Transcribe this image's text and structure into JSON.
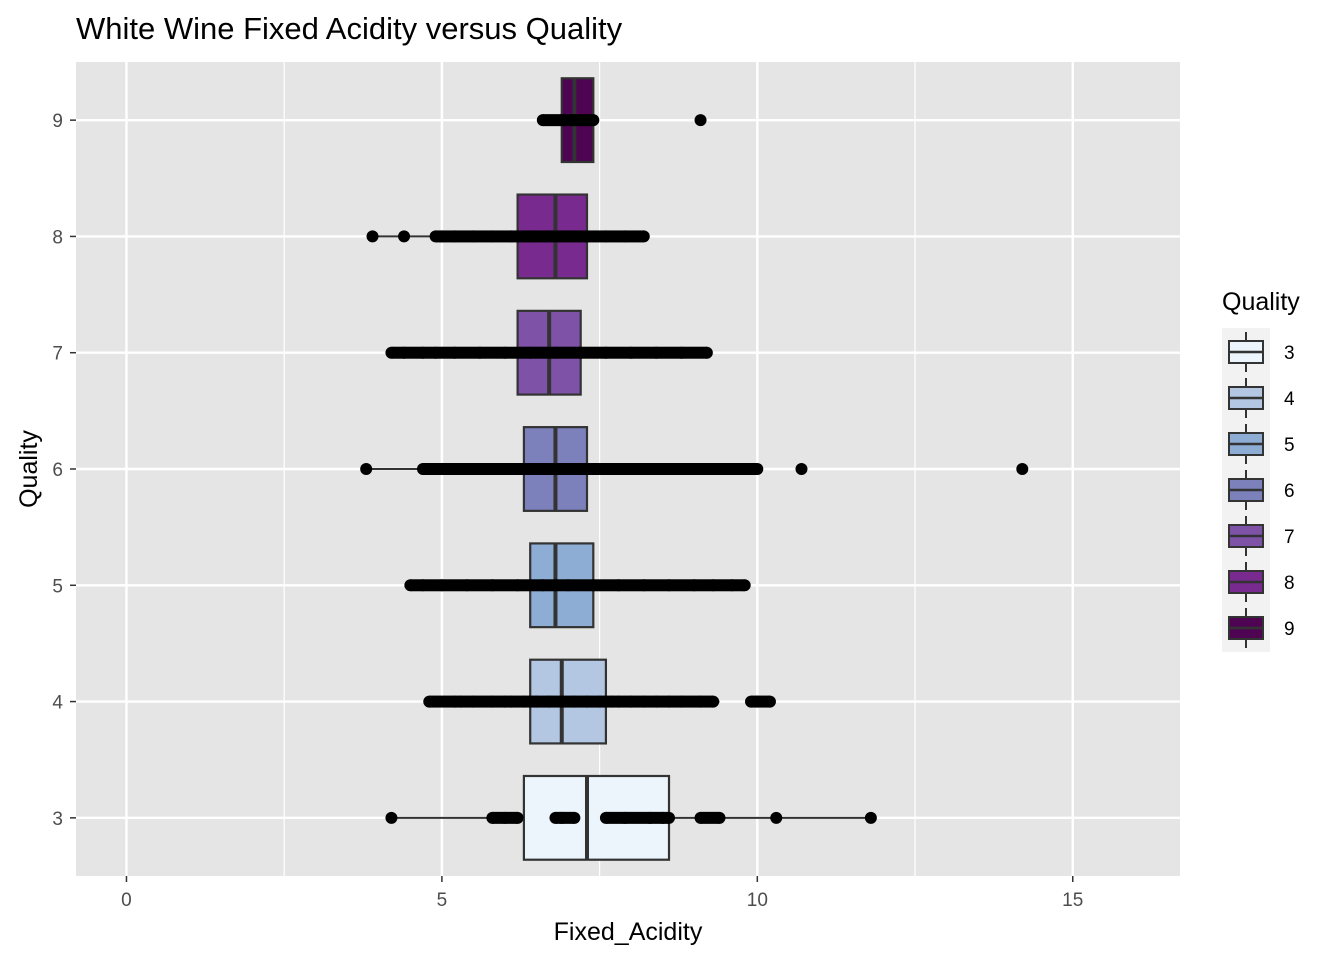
{
  "chart_data": {
    "type": "boxplot",
    "orientation": "horizontal",
    "title": "White Wine Fixed Acidity versus Quality",
    "xlabel": "Fixed_Acidity",
    "ylabel": "Quality",
    "xlim": [
      -0.8,
      16.7
    ],
    "x_ticks": [
      0,
      5,
      10,
      15
    ],
    "x_tick_labels": [
      "0",
      "5",
      "10",
      "15"
    ],
    "categories": [
      "3",
      "4",
      "5",
      "6",
      "7",
      "8",
      "9"
    ],
    "legend": {
      "title": "Quality",
      "position": "right",
      "entries": [
        "3",
        "4",
        "5",
        "6",
        "7",
        "8",
        "9"
      ]
    },
    "grid": true,
    "colors": {
      "panel": "#E5E5E5",
      "grid": "#FFFFFF",
      "box_outline": "#333333",
      "points": "#000000",
      "fills": [
        "#EBF5FB",
        "#B3C6E2",
        "#8EADD4",
        "#7C81BC",
        "#7D52A7",
        "#782A8F",
        "#4E0452"
      ]
    },
    "series": [
      {
        "category": "3",
        "q1": 6.3,
        "median": 7.3,
        "q3": 8.6,
        "whisker_low": 4.2,
        "whisker_high": 11.8,
        "points": [
          4.2,
          5.8,
          6.0,
          6.2,
          6.8,
          6.9,
          7.1,
          7.6,
          7.9,
          8.3,
          8.5,
          8.6,
          9.1,
          9.4,
          10.3,
          11.8
        ]
      },
      {
        "category": "4",
        "q1": 6.4,
        "median": 6.9,
        "q3": 7.6,
        "whisker_low": 4.8,
        "whisker_high": 9.4,
        "points": [
          4.8,
          5.2,
          5.3,
          5.5,
          5.8,
          6.0,
          6.1,
          6.3,
          6.5,
          6.7,
          6.9,
          7.1,
          7.3,
          7.5,
          7.7,
          7.8,
          8.0,
          8.2,
          8.4,
          8.6,
          8.8,
          9.1,
          9.3,
          9.9,
          10.0,
          10.2
        ]
      },
      {
        "category": "5",
        "q1": 6.4,
        "median": 6.8,
        "q3": 7.4,
        "whisker_low": 4.5,
        "whisker_high": 9.8,
        "points": [
          4.5,
          4.7,
          5.0,
          5.4,
          5.8,
          6.2,
          6.6,
          7.0,
          7.4,
          7.8,
          8.2,
          8.6,
          9.0,
          9.3,
          9.6,
          9.8
        ]
      },
      {
        "category": "6",
        "q1": 6.3,
        "median": 6.8,
        "q3": 7.3,
        "whisker_low": 3.8,
        "whisker_high": 10.0,
        "points": [
          3.8,
          4.7,
          5.1,
          5.5,
          5.9,
          6.3,
          6.7,
          7.1,
          7.5,
          7.9,
          8.3,
          8.7,
          9.0,
          9.3,
          9.6,
          9.8,
          10.0,
          10.7,
          14.2
        ]
      },
      {
        "category": "7",
        "q1": 6.2,
        "median": 6.7,
        "q3": 7.2,
        "whisker_low": 4.2,
        "whisker_high": 9.2,
        "points": [
          4.2,
          4.4,
          4.7,
          4.9,
          5.2,
          5.6,
          6.0,
          6.4,
          6.8,
          7.2,
          7.6,
          8.0,
          8.4,
          8.8,
          9.2
        ]
      },
      {
        "category": "8",
        "q1": 6.2,
        "median": 6.8,
        "q3": 7.3,
        "whisker_low": 3.9,
        "whisker_high": 8.2,
        "points": [
          3.9,
          4.4,
          4.9,
          5.0,
          5.2,
          5.5,
          5.8,
          6.1,
          6.4,
          6.7,
          7.0,
          7.3,
          7.6,
          7.9,
          8.2
        ]
      },
      {
        "category": "9",
        "q1": 6.9,
        "median": 7.1,
        "q3": 7.4,
        "whisker_low": 6.6,
        "whisker_high": 7.4,
        "points": [
          6.6,
          6.9,
          7.1,
          7.4,
          9.1
        ]
      }
    ]
  }
}
